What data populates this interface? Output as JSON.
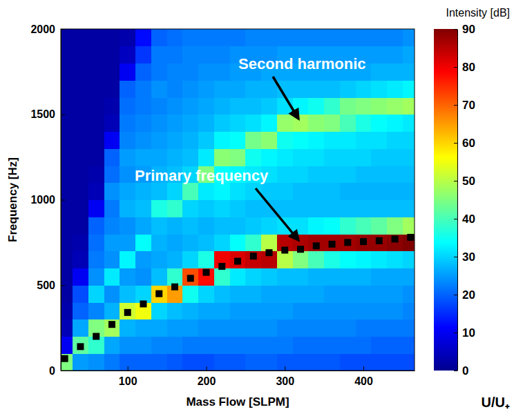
{
  "chart_data": {
    "type": "heatmap",
    "xlabel": "Mass Flow [SLPM]",
    "ylabel": "Frequency [Hz]",
    "xlim": [
      15,
      465
    ],
    "ylim": [
      0,
      2000
    ],
    "xticks": [
      100,
      200,
      300,
      400
    ],
    "yticks": [
      0,
      500,
      1000,
      1500,
      2000
    ],
    "x": [
      20,
      40,
      60,
      80,
      100,
      120,
      140,
      160,
      180,
      200,
      220,
      240,
      260,
      280,
      300,
      320,
      340,
      360,
      380,
      400,
      420,
      440,
      460
    ],
    "series": [
      {
        "type": "scatter",
        "marker": "square",
        "color": "#000000",
        "values": [
          70,
          140,
          200,
          270,
          340,
          390,
          450,
          490,
          540,
          575,
          610,
          640,
          670,
          690,
          705,
          710,
          730,
          740,
          750,
          755,
          760,
          770,
          780
        ]
      }
    ],
    "cells": {
      "x": [
        20,
        40,
        60,
        80,
        100,
        120,
        140,
        160,
        180,
        200,
        220,
        240,
        260,
        280,
        300,
        320,
        340,
        360,
        380,
        400,
        420,
        440,
        460
      ],
      "y": [
        50,
        150,
        250,
        350,
        450,
        550,
        650,
        750,
        850,
        950,
        1050,
        1150,
        1250,
        1350,
        1450,
        1550,
        1650,
        1750,
        1850,
        1950
      ],
      "z": [
        [
          45,
          10,
          4,
          3,
          2,
          2,
          2,
          2,
          2,
          2,
          2,
          2,
          2,
          2,
          2,
          2,
          2,
          2,
          2,
          2
        ],
        [
          25,
          42,
          26,
          20,
          18,
          10,
          4,
          3,
          2,
          2,
          2,
          2,
          2,
          2,
          2,
          2,
          2,
          2,
          2,
          2
        ],
        [
          24,
          38,
          45,
          23,
          30,
          24,
          22,
          21,
          20,
          10,
          4,
          3,
          2,
          2,
          2,
          2,
          2,
          2,
          2,
          2
        ],
        [
          22,
          26,
          48,
          27,
          24,
          32,
          24,
          25,
          23,
          22,
          24,
          21,
          20,
          10,
          4,
          3,
          2,
          2,
          2,
          2
        ],
        [
          20,
          24,
          27,
          52,
          28,
          25,
          33,
          25,
          24,
          27,
          26,
          24,
          25,
          23,
          22,
          21,
          20,
          10,
          5,
          3
        ],
        [
          20,
          24,
          26,
          55,
          30,
          24,
          25,
          34,
          26,
          28,
          27,
          25,
          26,
          24,
          23,
          22,
          22,
          20,
          16,
          12
        ],
        [
          20,
          23,
          26,
          30,
          60,
          28,
          26,
          27,
          28,
          36,
          28,
          27,
          26,
          25,
          24,
          23,
          24,
          22,
          22,
          20
        ],
        [
          19,
          23,
          25,
          28,
          65,
          38,
          27,
          26,
          27,
          38,
          30,
          28,
          27,
          26,
          25,
          24,
          23,
          23,
          22,
          21
        ],
        [
          18,
          22,
          25,
          27,
          35,
          72,
          30,
          27,
          28,
          30,
          40,
          30,
          28,
          27,
          26,
          25,
          24,
          23,
          23,
          22
        ],
        [
          18,
          22,
          24,
          26,
          30,
          78,
          36,
          28,
          27,
          29,
          32,
          45,
          32,
          29,
          27,
          26,
          25,
          24,
          23,
          22
        ],
        [
          19,
          22,
          24,
          26,
          28,
          38,
          80,
          30,
          28,
          30,
          33,
          34,
          46,
          33,
          29,
          27,
          26,
          24,
          23,
          22
        ],
        [
          19,
          22,
          24,
          25,
          27,
          32,
          82,
          34,
          28,
          29,
          31,
          33,
          45,
          34,
          30,
          28,
          26,
          25,
          24,
          22
        ],
        [
          20,
          22,
          24,
          25,
          27,
          30,
          84,
          38,
          29,
          28,
          30,
          32,
          35,
          44,
          31,
          28,
          27,
          25,
          24,
          23
        ],
        [
          20,
          22,
          24,
          25,
          26,
          29,
          85,
          50,
          30,
          28,
          29,
          31,
          33,
          46,
          33,
          29,
          27,
          26,
          24,
          23
        ],
        [
          19,
          22,
          23,
          25,
          26,
          28,
          50,
          85,
          31,
          28,
          29,
          30,
          32,
          35,
          47,
          31,
          28,
          26,
          25,
          23
        ],
        [
          19,
          21,
          23,
          24,
          26,
          28,
          45,
          86,
          31,
          28,
          28,
          30,
          31,
          34,
          48,
          33,
          28,
          26,
          25,
          23
        ],
        [
          19,
          21,
          23,
          24,
          26,
          27,
          40,
          87,
          33,
          28,
          28,
          29,
          31,
          33,
          46,
          35,
          28,
          26,
          25,
          23
        ],
        [
          19,
          21,
          23,
          24,
          25,
          27,
          36,
          87,
          34,
          28,
          28,
          29,
          30,
          32,
          45,
          38,
          28,
          26,
          25,
          23
        ],
        [
          18,
          21,
          23,
          24,
          25,
          27,
          34,
          87,
          38,
          28,
          27,
          29,
          30,
          32,
          40,
          44,
          29,
          26,
          25,
          23
        ],
        [
          18,
          21,
          22,
          24,
          25,
          27,
          33,
          88,
          40,
          28,
          27,
          28,
          30,
          31,
          36,
          45,
          30,
          26,
          25,
          23
        ],
        [
          18,
          20,
          22,
          24,
          25,
          26,
          32,
          88,
          42,
          28,
          27,
          28,
          29,
          31,
          34,
          46,
          31,
          27,
          25,
          23
        ],
        [
          18,
          20,
          22,
          24,
          25,
          26,
          31,
          89,
          45,
          28,
          27,
          28,
          29,
          30,
          33,
          47,
          32,
          27,
          25,
          23
        ],
        [
          18,
          20,
          22,
          23,
          24,
          26,
          30,
          90,
          48,
          28,
          27,
          28,
          29,
          30,
          32,
          48,
          33,
          27,
          26,
          24
        ]
      ]
    },
    "colorbar": {
      "title": "Intensity [dB]",
      "range": [
        0,
        90
      ],
      "ticks": [
        0,
        10,
        20,
        30,
        40,
        50,
        60,
        70,
        80,
        90
      ]
    },
    "annotations": [
      "Second harmonic",
      "Primary frequency",
      "U/U₊"
    ]
  }
}
